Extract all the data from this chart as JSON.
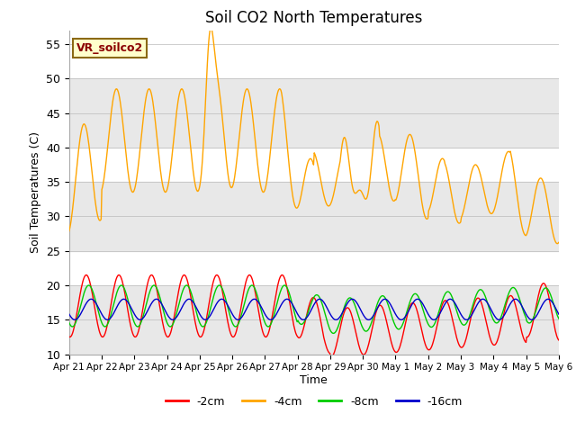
{
  "title": "Soil CO2 North Temperatures",
  "xlabel": "Time",
  "ylabel": "Soil Temperatures (C)",
  "ylim": [
    10,
    57
  ],
  "yticks": [
    10,
    15,
    20,
    25,
    30,
    35,
    40,
    45,
    50,
    55
  ],
  "annotation_text": "VR_soilco2",
  "annotation_color": "#8B0000",
  "annotation_bg": "#FFFFCC",
  "annotation_border": "#8B6914",
  "colors": {
    "-2cm": "#FF0000",
    "-4cm": "#FFA500",
    "-8cm": "#00CC00",
    "-16cm": "#0000CC"
  },
  "bg_bands": [
    {
      "ymin": 10,
      "ymax": 20,
      "color": "#E8E8E8"
    },
    {
      "ymin": 25,
      "ymax": 35,
      "color": "#E8E8E8"
    },
    {
      "ymin": 40,
      "ymax": 50,
      "color": "#E8E8E8"
    }
  ],
  "n_days": 15,
  "points_per_day": 48
}
